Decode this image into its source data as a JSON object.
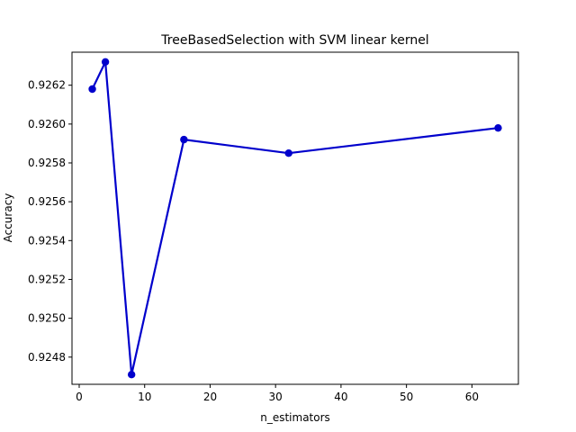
{
  "chart_data": {
    "type": "line",
    "title": "TreeBasedSelection with SVM linear kernel",
    "xlabel": "n_estimators",
    "ylabel": "Accuracy",
    "xlim": [
      -1.1,
      67.1
    ],
    "ylim": [
      0.92466,
      0.92637
    ],
    "x_ticks": [
      0,
      10,
      20,
      30,
      40,
      50,
      60
    ],
    "x_tick_labels": [
      "0",
      "10",
      "20",
      "30",
      "40",
      "50",
      "60"
    ],
    "y_ticks": [
      0.9248,
      0.925,
      0.9252,
      0.9254,
      0.9256,
      0.9258,
      0.926,
      0.9262
    ],
    "y_tick_labels": [
      "0.9248",
      "0.9250",
      "0.9252",
      "0.9254",
      "0.9256",
      "0.9258",
      "0.9260",
      "0.9262"
    ],
    "grid": false,
    "series": [
      {
        "color": "#0000cc",
        "marker": "circle",
        "points": [
          {
            "x": 2,
            "y": 0.92618
          },
          {
            "x": 4,
            "y": 0.92632
          },
          {
            "x": 8,
            "y": 0.92471
          },
          {
            "x": 16,
            "y": 0.92592
          },
          {
            "x": 32,
            "y": 0.92585
          },
          {
            "x": 64,
            "y": 0.92598
          }
        ]
      }
    ]
  }
}
